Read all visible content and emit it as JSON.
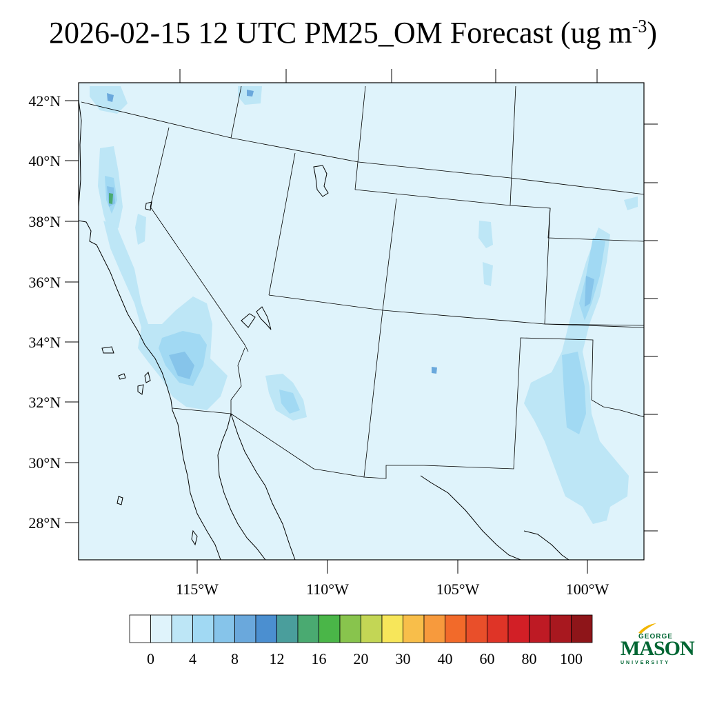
{
  "title": {
    "main": "2026-02-15 12 UTC PM25_OM Forecast (ug m",
    "superscript": "-3",
    "close": ")"
  },
  "map": {
    "lat_labels": [
      "42°N",
      "40°N",
      "38°N",
      "36°N",
      "34°N",
      "32°N",
      "30°N",
      "28°N"
    ],
    "lon_labels": [
      "115°W",
      "110°W",
      "105°W",
      "100°W"
    ],
    "background_color": "#dff3fb",
    "boundary_color": "#000000"
  },
  "colorbar": {
    "colors": [
      "#ffffff",
      "#dff3fb",
      "#bde6f6",
      "#a1d9f3",
      "#86c4ea",
      "#6aa8dc",
      "#4b8fd0",
      "#4a9e9c",
      "#4aaa71",
      "#4ab648",
      "#88c44d",
      "#c3d655",
      "#f7e65a",
      "#f8be4a",
      "#f79a3d",
      "#f26a2a",
      "#e94f2a",
      "#df3427",
      "#d21f26",
      "#be1a24",
      "#a8181f",
      "#8e1519"
    ],
    "labels": [
      "0",
      "4",
      "8",
      "12",
      "16",
      "20",
      "30",
      "40",
      "60",
      "80",
      "100"
    ]
  },
  "logo": {
    "line1": "GEORGE",
    "line2": "MASON",
    "line3": "UNIVERSITY",
    "color": "#006633",
    "accent": "#f2b600"
  }
}
